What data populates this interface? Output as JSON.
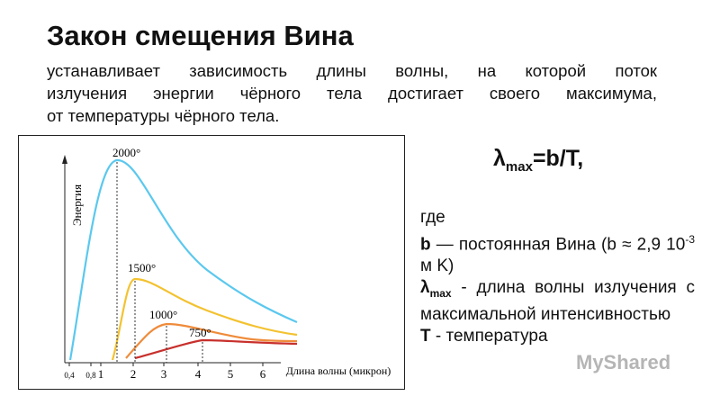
{
  "header": {
    "title": "Закон смещения Вина"
  },
  "intro": {
    "lines": [
      "устанавливает зависимость длины волны, на которой поток",
      "излучения энергии чёрного тела достигает своего максимума,",
      "от температуры чёрного тела."
    ]
  },
  "figure": {
    "y_label": "Энергия",
    "x_label": "Длина волны (микрон)",
    "x_ticks": [
      "0,4",
      "0,8",
      "1",
      "2",
      "3",
      "4",
      "5",
      "6"
    ],
    "curve_labels": [
      "2000°",
      "1500°",
      "1000°",
      "750°"
    ]
  },
  "formula": {
    "symbol": "λ",
    "subscript": "max",
    "rest": "=b/T,"
  },
  "explanation": {
    "intro": "где",
    "b_symbol": "b",
    "b_text": " — постоянная Вина (b ≈ 2,9 10",
    "b_exponent": "-3",
    "b_unit": " м K)",
    "lambda_symbol": "λ",
    "lambda_subscript": "max",
    "lambda_text": " - длина волны излучения с максимальной интенсивностью",
    "t_symbol": "T",
    "t_text": " - температура"
  },
  "watermark": "MyShared"
}
